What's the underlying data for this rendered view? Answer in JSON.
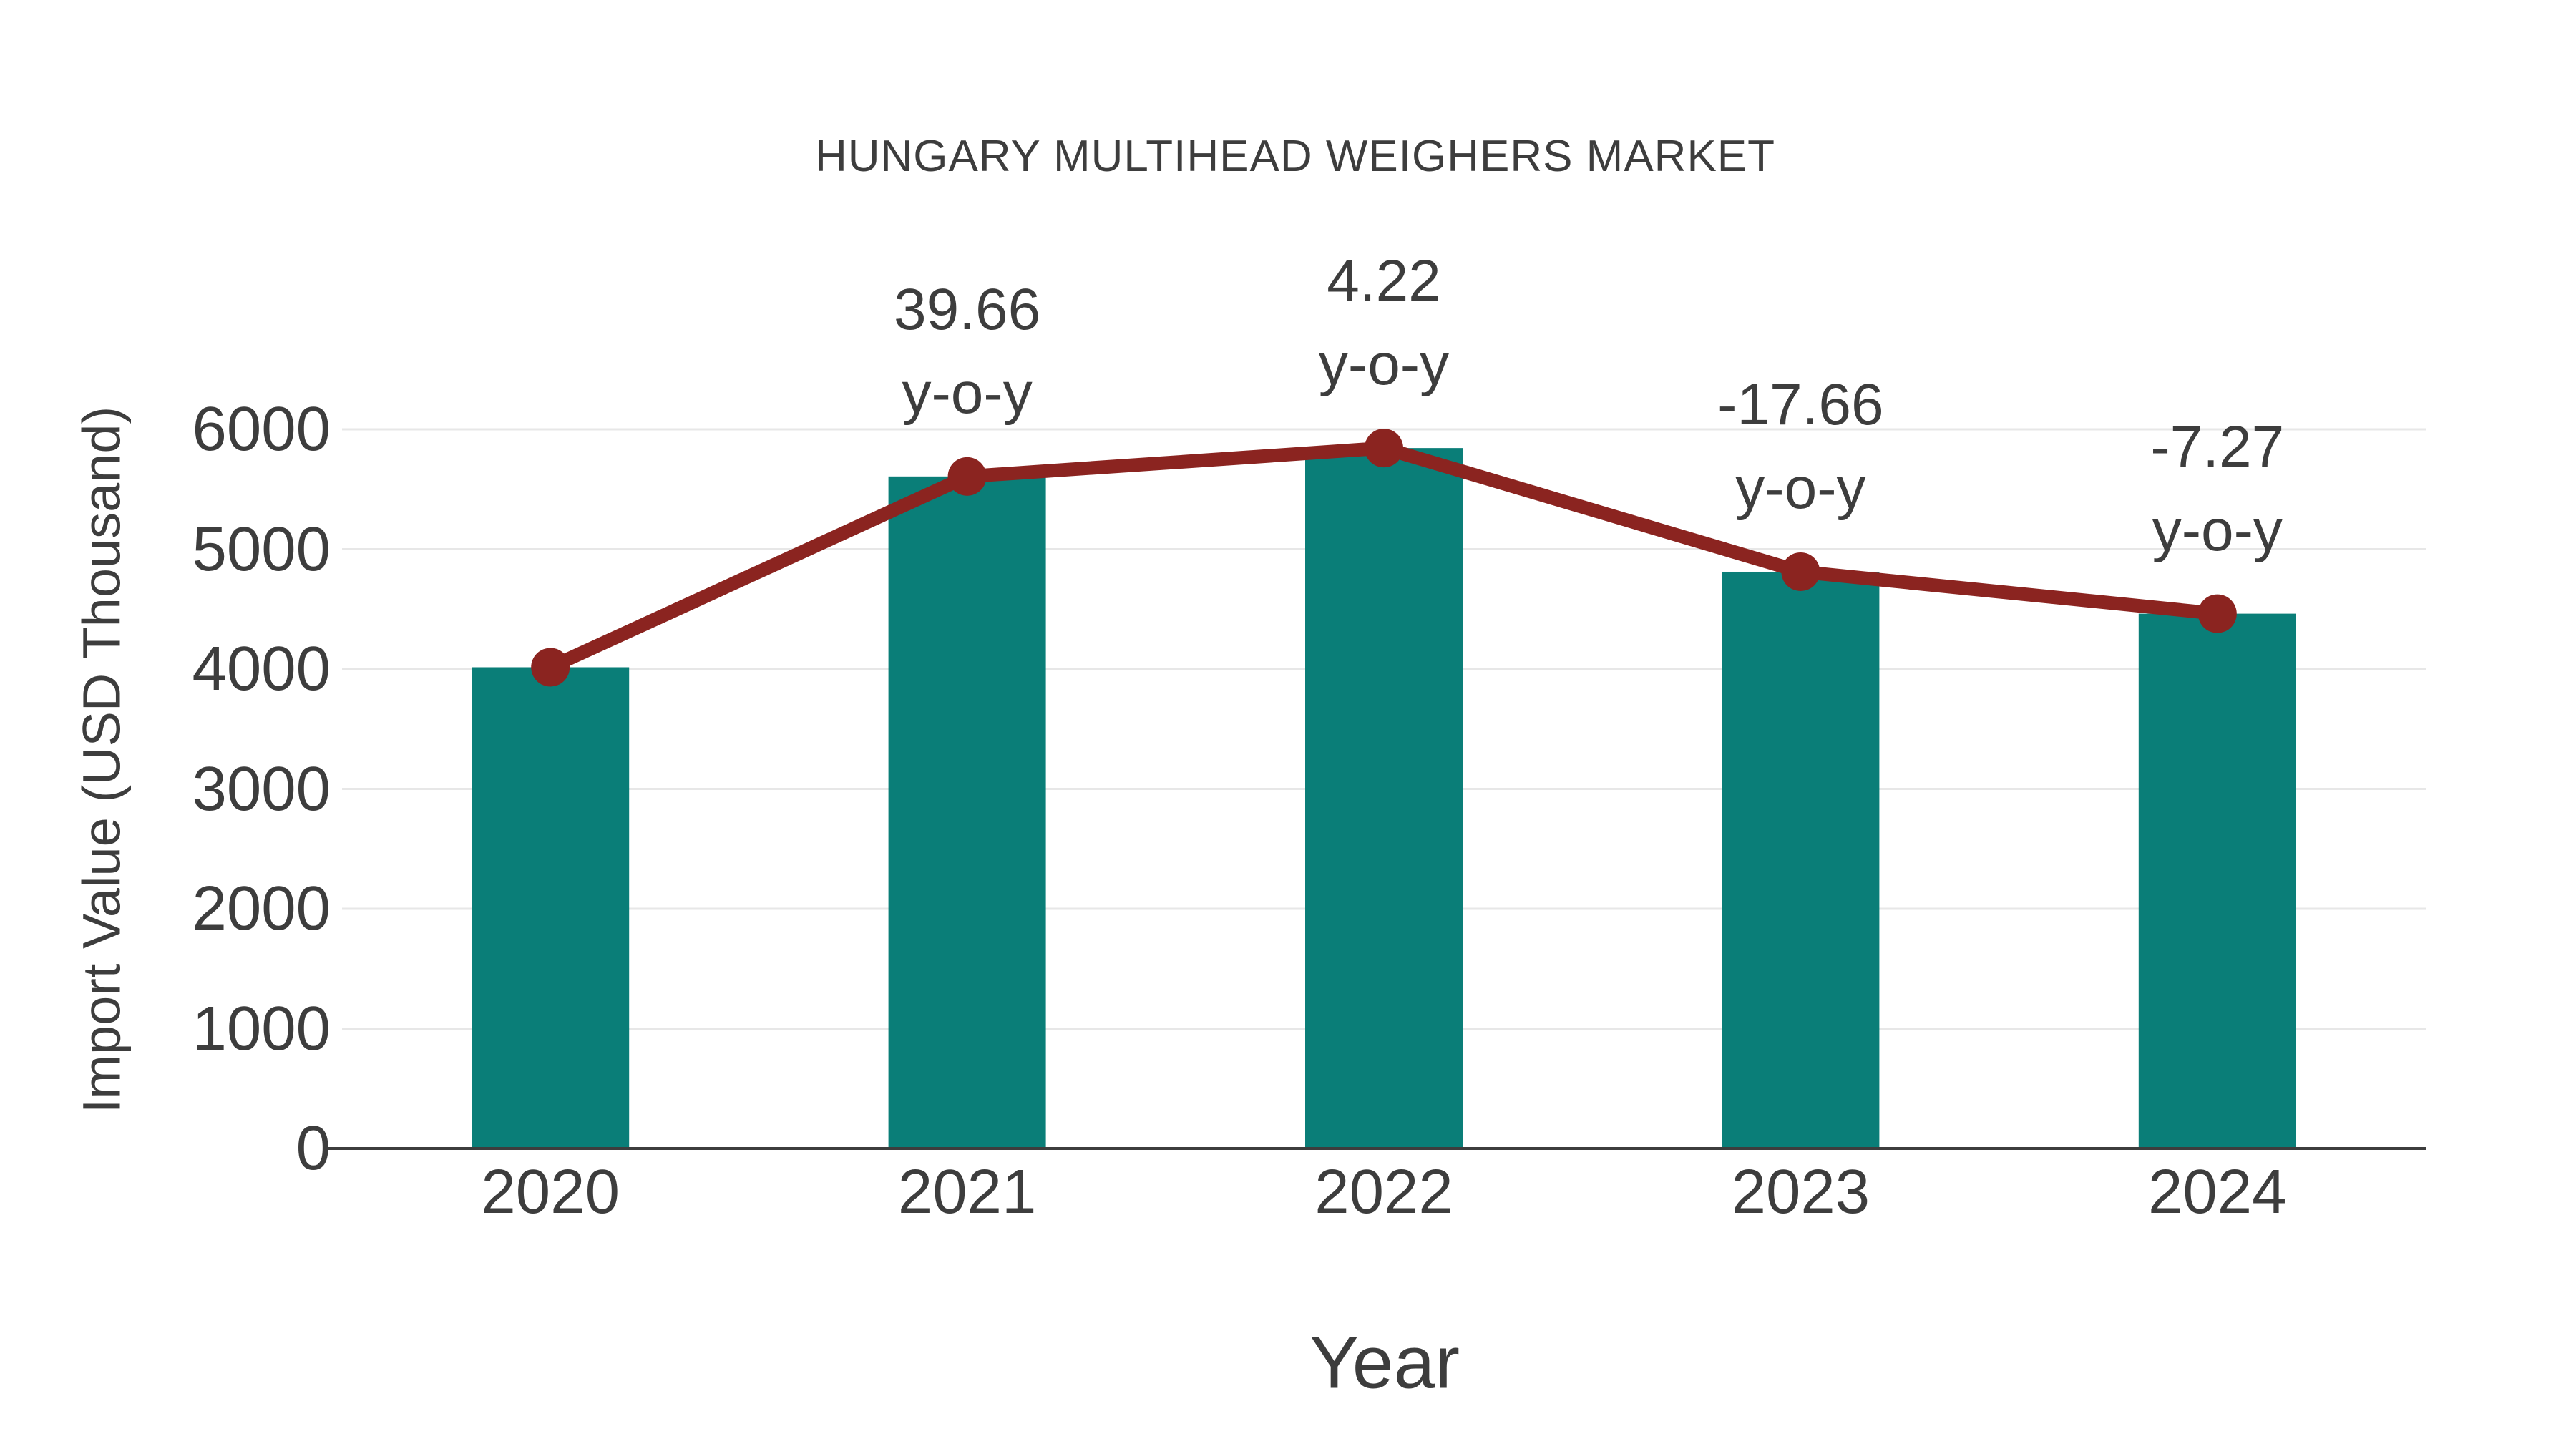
{
  "title": "HUNGARY MULTIHEAD WEIGHERS MARKET",
  "colors": {
    "bar": "#0a7e78",
    "line": "#8b2420",
    "text": "#3d3d3d",
    "grid": "#e7e7e7",
    "axis": "#3d3d3d",
    "background": "#ffffff"
  },
  "chart_data": {
    "type": "bar",
    "subtype": "bar-with-line-overlay",
    "title": "HUNGARY MULTIHEAD WEIGHERS MARKET",
    "xlabel": "Year",
    "ylabel": "Import Value (USD Thousand)",
    "categories": [
      "2020",
      "2021",
      "2022",
      "2023",
      "2024"
    ],
    "series": [
      {
        "name": "Import Value (USD Thousand)",
        "type": "bar",
        "values": [
          4015,
          5607,
          5844,
          4812,
          4462
        ]
      },
      {
        "name": "Trend line",
        "type": "line",
        "values": [
          4015,
          5607,
          5844,
          4812,
          4462
        ]
      }
    ],
    "annotations": [
      {
        "category": "2021",
        "value_label": "39.66",
        "sub_label": "y-o-y"
      },
      {
        "category": "2022",
        "value_label": "4.22",
        "sub_label": "y-o-y"
      },
      {
        "category": "2023",
        "value_label": "-17.66",
        "sub_label": "y-o-y"
      },
      {
        "category": "2024",
        "value_label": "-7.27",
        "sub_label": "y-o-y"
      }
    ],
    "yticks": [
      "0",
      "1000",
      "2000",
      "3000",
      "4000",
      "5000",
      "6000"
    ],
    "ylim": [
      0,
      6400
    ],
    "grid": "horizontal",
    "legend": "none"
  }
}
